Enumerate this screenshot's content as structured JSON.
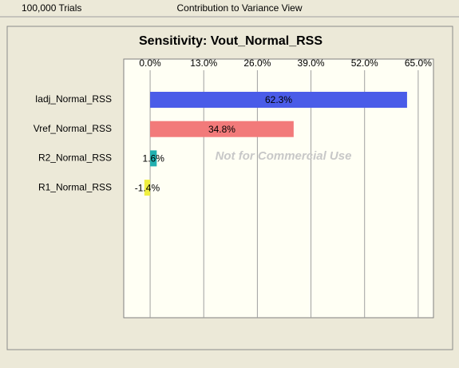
{
  "window": {
    "trials": "100,000 Trials",
    "view": "Contribution to Variance View"
  },
  "chart_data": {
    "type": "bar",
    "orientation": "horizontal",
    "title": "Sensitivity: Vout_Normal_RSS",
    "categories": [
      "Iadj_Normal_RSS",
      "Vref_Normal_RSS",
      "R2_Normal_RSS",
      "R1_Normal_RSS"
    ],
    "values": [
      62.3,
      34.8,
      1.6,
      -1.4
    ],
    "value_labels": [
      "62.3%",
      "34.8%",
      "1.6%",
      "-1.4%"
    ],
    "colors": [
      "#4a5ce8",
      "#f27a7a",
      "#22b0b0",
      "#f0f040"
    ],
    "xlim": [
      -6.4,
      68.7
    ],
    "xticks": [
      {
        "value": 0,
        "label": "0.0%"
      },
      {
        "value": 13,
        "label": "13.0%"
      },
      {
        "value": 26,
        "label": "26.0%"
      },
      {
        "value": 39,
        "label": "39.0%"
      },
      {
        "value": 52,
        "label": "52.0%"
      },
      {
        "value": 65,
        "label": "65.0%"
      }
    ],
    "grid": true,
    "annotation": "Not for Commercial Use"
  }
}
